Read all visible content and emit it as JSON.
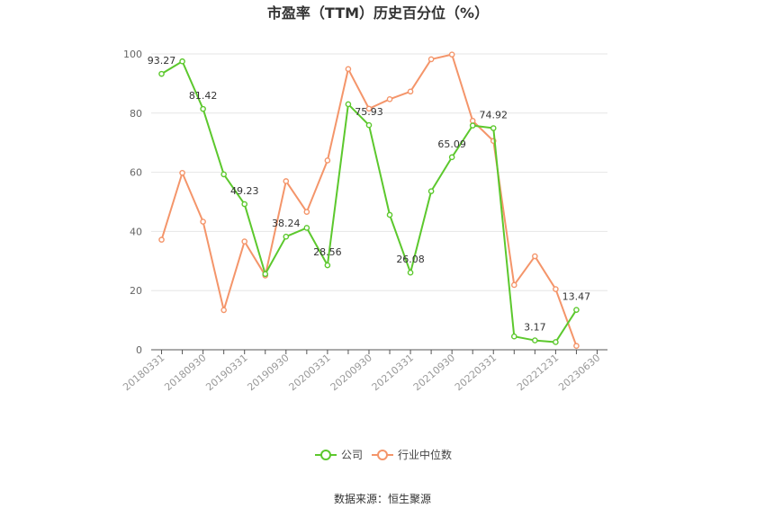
{
  "chart_data": {
    "type": "line",
    "title": "市盈率（TTM）历史百分位（%）",
    "source": "数据来源：恒生聚源",
    "ylim": [
      0,
      100
    ],
    "yticks": [
      0,
      20,
      40,
      60,
      80,
      100
    ],
    "grid": true,
    "legend_position": "bottom",
    "x": [
      "20180331",
      "20180630",
      "20180930",
      "20181231",
      "20190331",
      "20190630",
      "20190930",
      "20191231",
      "20200331",
      "20200630",
      "20200930",
      "20201231",
      "20210331",
      "20210630",
      "20210930",
      "20211231",
      "20220331",
      "20220630",
      "20220930",
      "20221231",
      "20230331",
      "20230630"
    ],
    "xticks_shown": [
      "20180331",
      "20180930",
      "20190331",
      "20190930",
      "20200331",
      "20200930",
      "20210331",
      "20210930",
      "20220331",
      "20221231",
      "20230630"
    ],
    "series": [
      {
        "name": "公司",
        "color": "#5cc82d",
        "values": [
          93.27,
          97.5,
          81.42,
          59.3,
          49.23,
          25.6,
          38.24,
          41.2,
          28.56,
          83.0,
          75.93,
          45.6,
          26.08,
          53.6,
          65.09,
          75.8,
          74.92,
          4.5,
          3.17,
          2.6,
          13.47,
          null
        ],
        "labels": {
          "0": "93.27",
          "2": "81.42",
          "4": "49.23",
          "6": "38.24",
          "8": "28.56",
          "10": "75.93",
          "12": "26.08",
          "14": "65.09",
          "16": "74.92",
          "18": "3.17",
          "20": "13.47"
        }
      },
      {
        "name": "行业中位数",
        "color": "#f4956a",
        "values": [
          37.2,
          59.8,
          43.3,
          13.4,
          36.6,
          25.1,
          57.0,
          46.6,
          64.0,
          94.9,
          81.5,
          84.7,
          87.3,
          98.2,
          99.8,
          77.4,
          70.6,
          21.9,
          31.6,
          20.5,
          1.3,
          null
        ]
      }
    ]
  }
}
